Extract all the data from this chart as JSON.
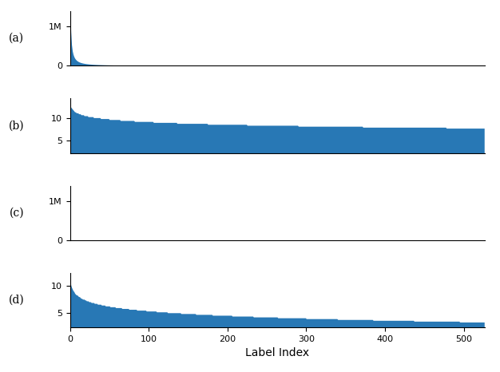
{
  "n_labels": 527,
  "fill_color": "#2878b5",
  "subplot_labels": [
    "(a)",
    "(b)",
    "(c)",
    "(d)"
  ],
  "xlabel": "Label Index",
  "subplot_a": {
    "yticks": [
      0,
      1000000
    ],
    "yticklabels": [
      "0",
      "1M"
    ],
    "ymax": 1400000,
    "ymin": 0,
    "scale": 2000000,
    "exponent": 1.2
  },
  "subplot_b": {
    "yticks": [
      5,
      10
    ],
    "yticklabels": [
      "5",
      "10"
    ],
    "ymax": 14.5,
    "ymin": 2.2,
    "start": 13.2,
    "end": 7.8,
    "step_count": 25
  },
  "subplot_c": {
    "yticks": [
      0,
      1000000
    ],
    "yticklabels": [
      "0",
      "1M"
    ],
    "ymax": 1400000,
    "ymin": 0,
    "scale": 30000,
    "exponent": 1.8
  },
  "subplot_d": {
    "yticks": [
      5,
      10
    ],
    "yticklabels": [
      "5",
      "10"
    ],
    "ymax": 12.5,
    "ymin": 2.2,
    "start": 11.2,
    "end": 3.2,
    "step_count": 50
  },
  "xticks": [
    0,
    100,
    200,
    300,
    400,
    500
  ],
  "xticklabels": [
    "0",
    "100",
    "200",
    "300",
    "400",
    "500"
  ]
}
